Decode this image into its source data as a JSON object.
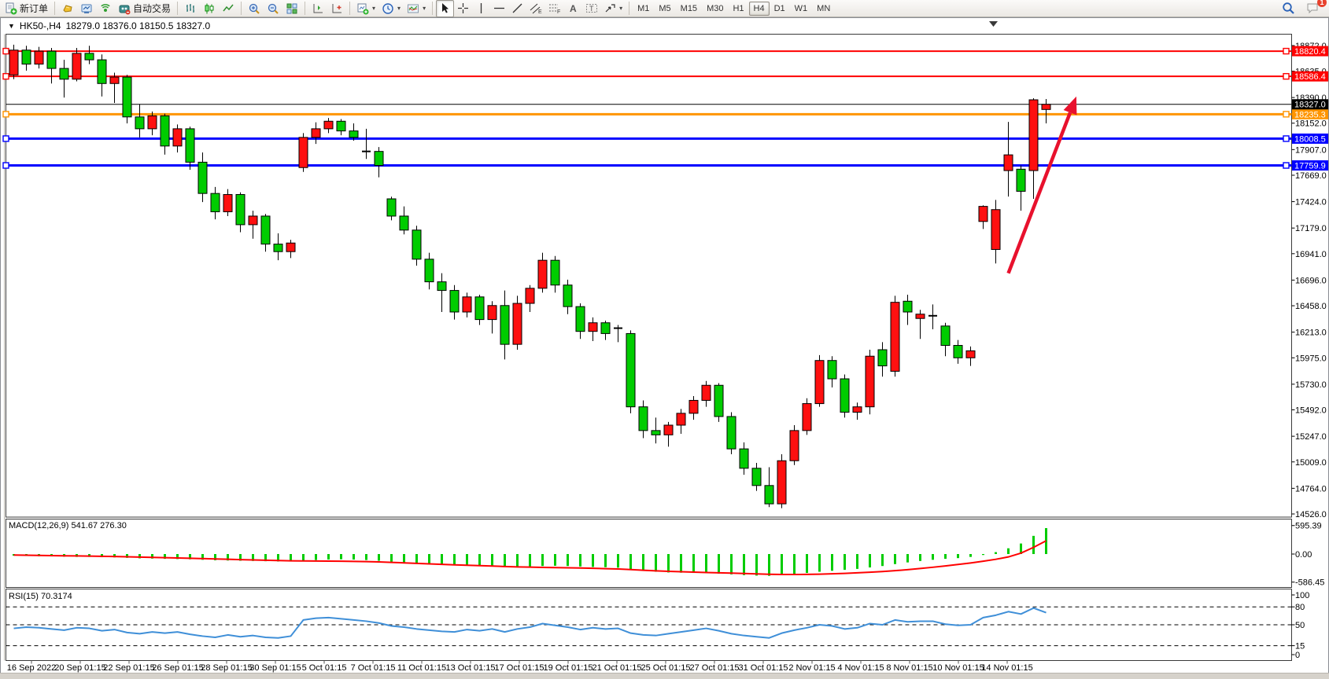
{
  "toolbar": {
    "new_order_label": "新订单",
    "autotrading_label": "自动交易",
    "timeframes": [
      "M1",
      "M5",
      "M15",
      "M30",
      "H1",
      "H4",
      "D1",
      "W1",
      "MN"
    ],
    "selected_timeframe": "H4",
    "notification_count": "1"
  },
  "chart": {
    "symbol_period": "HK50-,H4",
    "ohlc_readout": "18279.0 18376.0 18150.5 18327.0"
  },
  "chart_data": {
    "type": "candlestick",
    "symbol": "HK50-",
    "timeframe": "H4",
    "last_bar": {
      "open": 18279.0,
      "high": 18376.0,
      "low": 18150.5,
      "close": 18327.0
    },
    "colors": {
      "up_candle": "#fe1010",
      "down_candle": "#00cc00",
      "candle_border": "#000000",
      "resistance_line": "#ff0000",
      "support_line": "#0000ff",
      "pivot_line": "#ff9500",
      "bid_line": "#000000",
      "macd_histogram": "#00cc00",
      "macd_signal": "#ff0000",
      "rsi_line": "#3f8fd8",
      "arrow": "#e8112d"
    },
    "y_axis": {
      "top_price": 18872.0,
      "bottom_price": 14526.0,
      "ticks": [
        "18872.0",
        "18635.0",
        "18390.0",
        "18152.0",
        "17907.0",
        "17669.0",
        "17424.0",
        "17179.0",
        "16941.0",
        "16696.0",
        "16458.0",
        "16213.0",
        "15975.0",
        "15730.0",
        "15492.0",
        "15247.0",
        "15009.0",
        "14764.0",
        "14526.0"
      ]
    },
    "x_labels": [
      "16 Sep 2022",
      "20 Sep 01:15",
      "22 Sep 01:15",
      "26 Sep 01:15",
      "28 Sep 01:15",
      "30 Sep 01:15",
      "5 Oct 01:15",
      "7 Oct 01:15",
      "11 Oct 01:15",
      "13 Oct 01:15",
      "17 Oct 01:15",
      "19 Oct 01:15",
      "21 Oct 01:15",
      "25 Oct 01:15",
      "27 Oct 01:15",
      "31 Oct 01:15",
      "2 Nov 01:15",
      "4 Nov 01:15",
      "8 Nov 01:15",
      "10 Nov 01:15",
      "14 Nov 01:15"
    ],
    "hlines": [
      {
        "price": 18820.4,
        "label": "18820.4",
        "color": "#ff0000",
        "width": 2
      },
      {
        "price": 18586.4,
        "label": "18586.4",
        "color": "#ff0000",
        "width": 2
      },
      {
        "price": 18235.3,
        "label": "18235.3",
        "color": "#ff9500",
        "width": 3
      },
      {
        "price": 18008.5,
        "label": "18008.5",
        "color": "#0000ff",
        "width": 3
      },
      {
        "price": 17759.9,
        "label": "17759.9",
        "color": "#0000ff",
        "width": 3
      }
    ],
    "bid_line": {
      "price": 18327.0,
      "label": "18327.0",
      "color": "#000000"
    },
    "trend_arrow": {
      "start": {
        "bar": 79.0,
        "price": 16760
      },
      "end": {
        "bar": 84.4,
        "price": 18400
      }
    },
    "candles": [
      [
        18600,
        18880,
        18560,
        18830
      ],
      [
        18830,
        18870,
        18640,
        18700
      ],
      [
        18700,
        18860,
        18660,
        18820
      ],
      [
        18820,
        18850,
        18520,
        18660
      ],
      [
        18660,
        18740,
        18390,
        18560
      ],
      [
        18560,
        18850,
        18540,
        18800
      ],
      [
        18800,
        18870,
        18700,
        18740
      ],
      [
        18740,
        18790,
        18400,
        18520
      ],
      [
        18520,
        18620,
        18340,
        18580
      ],
      [
        18580,
        18600,
        18150,
        18210
      ],
      [
        18210,
        18330,
        18020,
        18100
      ],
      [
        18100,
        18260,
        18040,
        18220
      ],
      [
        18220,
        18240,
        17860,
        17940
      ],
      [
        17940,
        18140,
        17880,
        18100
      ],
      [
        18100,
        18120,
        17720,
        17790
      ],
      [
        17790,
        17880,
        17420,
        17500
      ],
      [
        17500,
        17560,
        17260,
        17330
      ],
      [
        17330,
        17540,
        17290,
        17490
      ],
      [
        17490,
        17510,
        17140,
        17210
      ],
      [
        17210,
        17340,
        17080,
        17290
      ],
      [
        17290,
        17310,
        16960,
        17030
      ],
      [
        17030,
        17130,
        16880,
        16960
      ],
      [
        16960,
        17070,
        16900,
        17040
      ],
      [
        17740,
        18060,
        17700,
        18020
      ],
      [
        18020,
        18160,
        17960,
        18100
      ],
      [
        18100,
        18200,
        18060,
        18170
      ],
      [
        18170,
        18190,
        18040,
        18080
      ],
      [
        18080,
        18150,
        17990,
        18020
      ],
      [
        17890,
        18100,
        17820,
        17890
      ],
      [
        17890,
        17930,
        17650,
        17760
      ],
      [
        17450,
        17470,
        17250,
        17290
      ],
      [
        17290,
        17380,
        17120,
        17160
      ],
      [
        17160,
        17200,
        16830,
        16890
      ],
      [
        16890,
        16950,
        16610,
        16680
      ],
      [
        16680,
        16760,
        16400,
        16600
      ],
      [
        16600,
        16650,
        16330,
        16400
      ],
      [
        16400,
        16580,
        16350,
        16540
      ],
      [
        16540,
        16560,
        16280,
        16330
      ],
      [
        16330,
        16500,
        16200,
        16460
      ],
      [
        16460,
        16600,
        15960,
        16100
      ],
      [
        16100,
        16550,
        16050,
        16480
      ],
      [
        16480,
        16650,
        16400,
        16620
      ],
      [
        16620,
        16950,
        16580,
        16880
      ],
      [
        16880,
        16920,
        16580,
        16650
      ],
      [
        16650,
        16700,
        16380,
        16450
      ],
      [
        16450,
        16480,
        16150,
        16220
      ],
      [
        16220,
        16350,
        16130,
        16300
      ],
      [
        16300,
        16320,
        16140,
        16200
      ],
      [
        16250,
        16280,
        16120,
        16250
      ],
      [
        16200,
        16230,
        15460,
        15520
      ],
      [
        15520,
        15580,
        15230,
        15300
      ],
      [
        15300,
        15420,
        15180,
        15260
      ],
      [
        15260,
        15380,
        15150,
        15350
      ],
      [
        15350,
        15500,
        15270,
        15460
      ],
      [
        15460,
        15620,
        15400,
        15580
      ],
      [
        15580,
        15760,
        15520,
        15720
      ],
      [
        15720,
        15740,
        15380,
        15430
      ],
      [
        15430,
        15470,
        15080,
        15130
      ],
      [
        15130,
        15190,
        14890,
        14950
      ],
      [
        14950,
        15000,
        14740,
        14790
      ],
      [
        14790,
        14960,
        14590,
        14620
      ],
      [
        14620,
        15080,
        14580,
        15020
      ],
      [
        15020,
        15350,
        14980,
        15300
      ],
      [
        15300,
        15600,
        15260,
        15550
      ],
      [
        15550,
        16000,
        15520,
        15950
      ],
      [
        15950,
        15990,
        15700,
        15780
      ],
      [
        15780,
        15820,
        15420,
        15470
      ],
      [
        15470,
        15560,
        15400,
        15520
      ],
      [
        15520,
        16050,
        15450,
        15990
      ],
      [
        16050,
        16120,
        15800,
        15900
      ],
      [
        15850,
        16550,
        15800,
        16490
      ],
      [
        16500,
        16560,
        16280,
        16400
      ],
      [
        16340,
        16420,
        16150,
        16380
      ],
      [
        16365,
        16470,
        16240,
        16365
      ],
      [
        16270,
        16300,
        15990,
        16090
      ],
      [
        16090,
        16140,
        15920,
        15975
      ],
      [
        15975,
        16080,
        15900,
        16040
      ],
      [
        17240,
        17390,
        17170,
        17380
      ],
      [
        16980,
        17440,
        16850,
        17350
      ],
      [
        17712,
        18164,
        17471,
        17858
      ],
      [
        17725,
        17760,
        17340,
        17520
      ],
      [
        17712,
        18383,
        17450,
        18369
      ],
      [
        18279,
        18376,
        18150.5,
        18327
      ]
    ],
    "macd": {
      "label": "MACD(12,26,9)",
      "values_text": "541.67 276.30",
      "main_value": 541.67,
      "signal_value": 276.3,
      "scale_ticks": [
        "595.39",
        "0.00",
        "-586.45"
      ],
      "histogram": [
        -35,
        -40,
        -45,
        -50,
        -55,
        -60,
        -60,
        -65,
        -70,
        -80,
        -90,
        -95,
        -100,
        -105,
        -110,
        -120,
        -130,
        -135,
        -140,
        -145,
        -150,
        -155,
        -155,
        -140,
        -125,
        -115,
        -110,
        -115,
        -125,
        -140,
        -160,
        -180,
        -200,
        -215,
        -225,
        -235,
        -240,
        -245,
        -250,
        -260,
        -265,
        -260,
        -250,
        -245,
        -250,
        -260,
        -270,
        -275,
        -285,
        -320,
        -350,
        -370,
        -385,
        -390,
        -395,
        -400,
        -410,
        -425,
        -440,
        -450,
        -455,
        -440,
        -420,
        -395,
        -370,
        -350,
        -330,
        -310,
        -280,
        -250,
        -210,
        -175,
        -145,
        -120,
        -100,
        -85,
        -60,
        -20,
        40,
        120,
        220,
        380,
        541.67
      ],
      "signal": [
        -20,
        -24,
        -28,
        -32,
        -36,
        -40,
        -44,
        -48,
        -52,
        -58,
        -64,
        -70,
        -76,
        -82,
        -88,
        -95,
        -102,
        -109,
        -116,
        -123,
        -130,
        -136,
        -141,
        -144,
        -146,
        -148,
        -150,
        -153,
        -158,
        -165,
        -174,
        -184,
        -195,
        -206,
        -216,
        -226,
        -235,
        -243,
        -251,
        -260,
        -268,
        -274,
        -279,
        -283,
        -287,
        -292,
        -298,
        -305,
        -313,
        -325,
        -338,
        -350,
        -361,
        -370,
        -378,
        -385,
        -392,
        -399,
        -407,
        -415,
        -422,
        -426,
        -427,
        -425,
        -420,
        -413,
        -404,
        -393,
        -380,
        -365,
        -347,
        -326,
        -302,
        -276,
        -248,
        -218,
        -186,
        -150,
        -110,
        -60,
        20,
        140,
        276.3
      ]
    },
    "rsi": {
      "label": "RSI(15)",
      "value_text": "70.3174",
      "value": 70.3174,
      "levels": [
        80,
        50,
        15
      ],
      "scale_ticks": [
        "100",
        "80",
        "50",
        "15",
        "0"
      ],
      "points": [
        44,
        46,
        45,
        43,
        41,
        45,
        44,
        40,
        42,
        37,
        35,
        38,
        36,
        38,
        34,
        31,
        29,
        33,
        30,
        32,
        29,
        28,
        31,
        58,
        61,
        62,
        60,
        58,
        56,
        53,
        48,
        46,
        43,
        41,
        39,
        38,
        42,
        40,
        43,
        38,
        43,
        46,
        52,
        49,
        46,
        42,
        45,
        43,
        44,
        36,
        33,
        32,
        35,
        38,
        41,
        44,
        40,
        35,
        32,
        30,
        28,
        36,
        41,
        45,
        50,
        48,
        43,
        45,
        52,
        50,
        58,
        55,
        56,
        56,
        51,
        49,
        50,
        62,
        66,
        72,
        68,
        78,
        70.31
      ]
    }
  }
}
